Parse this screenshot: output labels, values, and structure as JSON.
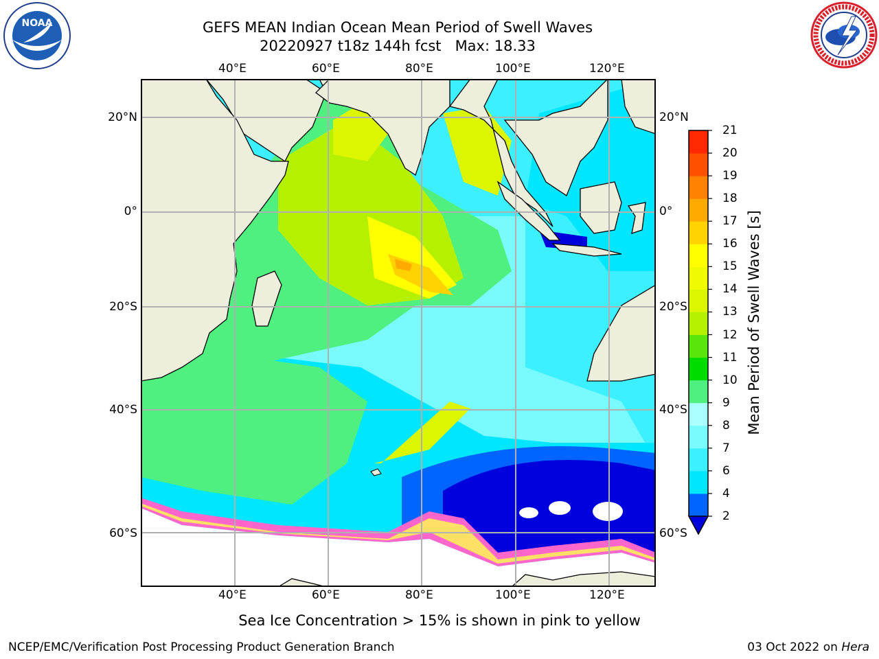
{
  "header": {
    "title_line1": "GEFS MEAN Indian Ocean Mean Period of Swell Waves",
    "title_line2": "20220927 t18z 144h fcst   Max: 18.33"
  },
  "logos": {
    "left": {
      "name": "noaa-logo",
      "text": "NOAA",
      "ring_text": "NATIONAL OCEANIC AND ATMOSPHERIC ADMINISTRATION · U.S. DEPARTMENT OF COMMERCE"
    },
    "right": {
      "name": "nws-logo",
      "ring_text": "NATIONAL WEATHER SERVICE"
    }
  },
  "map": {
    "top_lon_labels": [
      "40°E",
      "60°E",
      "80°E",
      "100°E",
      "120°E"
    ],
    "bottom_lon_labels": [
      "40°E",
      "60°E",
      "80°E",
      "100°E",
      "120°E"
    ],
    "left_lat_labels": [
      "20°N",
      "0°",
      "20°S",
      "40°S",
      "60°S"
    ],
    "right_lat_labels": [
      "20°N",
      "0°",
      "20°S",
      "40°S",
      "60°S"
    ],
    "colors": {
      "land": "#eeeedd",
      "grid": "#b0b0b0",
      "ice_pink": "#ff66cc",
      "ice_yellow": "#ffe066"
    }
  },
  "colorbar": {
    "label": "Mean Period of Swell Waves [s]",
    "levels": [
      2,
      4,
      6,
      7,
      8,
      9,
      10,
      11,
      12,
      13,
      14,
      15,
      16,
      17,
      18,
      19,
      20,
      21
    ],
    "tick_labels": [
      "21",
      "20",
      "19",
      "18",
      "17",
      "16",
      "15",
      "14",
      "13",
      "12",
      "11",
      "10",
      "9",
      "8",
      "7",
      "6",
      "4",
      "2"
    ],
    "colors": [
      "#0064ff",
      "#00e6ff",
      "#3cf0ff",
      "#78faff",
      "#aaffff",
      "#50f080",
      "#00dc00",
      "#5ae60a",
      "#b4f000",
      "#dcf500",
      "#f0fa00",
      "#ffff00",
      "#ffd200",
      "#ffaa00",
      "#ff8200",
      "#ff5000",
      "#ff2800"
    ],
    "extend_color": "#0000dc"
  },
  "footer": {
    "sea_ice_note": "Sea Ice Concentration > 15% is shown in pink to yellow",
    "credit": "NCEP/EMC/Verification Post Processing Product Generation Branch",
    "date": "03 Oct 2022 on ",
    "machine": "Hera"
  }
}
